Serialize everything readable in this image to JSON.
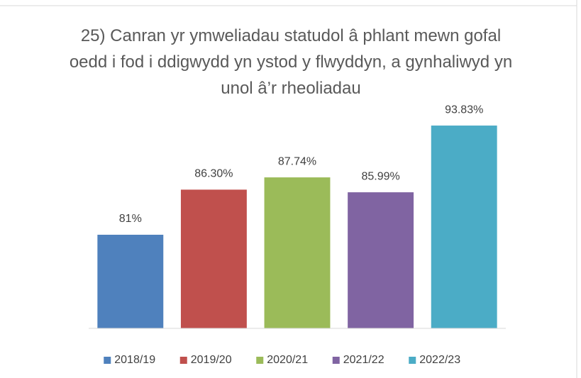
{
  "chart_data": {
    "type": "bar",
    "title": "25) Canran yr ymweliadau statudol â phlant mewn gofal oedd i fod i ddigwydd yn ystod y flwyddyn, a gynhaliwyd yn unol â’r rheoliadau",
    "categories": [
      "2018/19",
      "2019/20",
      "2020/21",
      "2021/22",
      "2022/23"
    ],
    "values": [
      81,
      86.3,
      87.74,
      85.99,
      93.83
    ],
    "value_labels": [
      "81%",
      "86.30%",
      "87.74%",
      "85.99%",
      "93.83%"
    ],
    "colors": [
      "#4f81bd",
      "#c0504d",
      "#9bbb59",
      "#8064a2",
      "#4bacc6"
    ],
    "ylim": [
      70,
      95
    ],
    "legend": "bottom"
  }
}
